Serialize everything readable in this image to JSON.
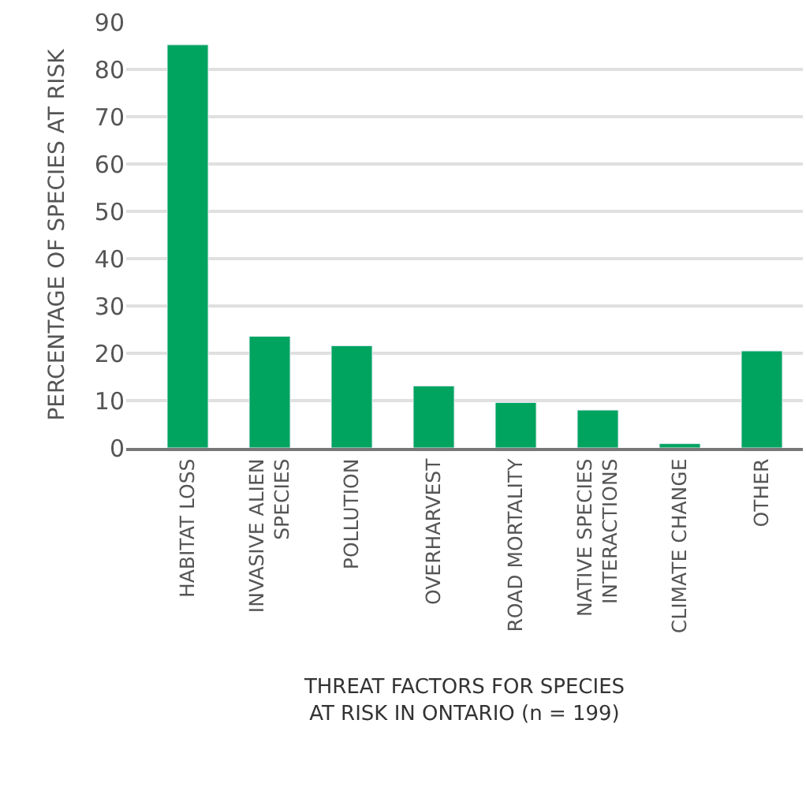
{
  "chart_data": {
    "type": "bar",
    "xlabel": "THREAT FACTORS FOR SPECIES\nAT RISK IN ONTARIO (n = 199)",
    "ylabel": "PERCENTAGE OF SPECIES AT RISK",
    "categories": [
      "HABITAT LOSS",
      "INVASIVE ALIEN\nSPECIES",
      "POLLUTION",
      "OVERHARVEST",
      "ROAD MORTALITY",
      "NATIVE SPECIES\nINTERACTIONS",
      "CLIMATE CHANGE",
      "OTHER"
    ],
    "values": [
      85.2,
      23.6,
      21.6,
      13.1,
      9.6,
      8.0,
      0.9,
      20.5
    ],
    "color": "#00a45f",
    "ylim": [
      0,
      90
    ],
    "yticks": [
      0,
      10,
      20,
      30,
      40,
      50,
      60,
      70,
      80,
      90
    ],
    "grid": "y"
  }
}
